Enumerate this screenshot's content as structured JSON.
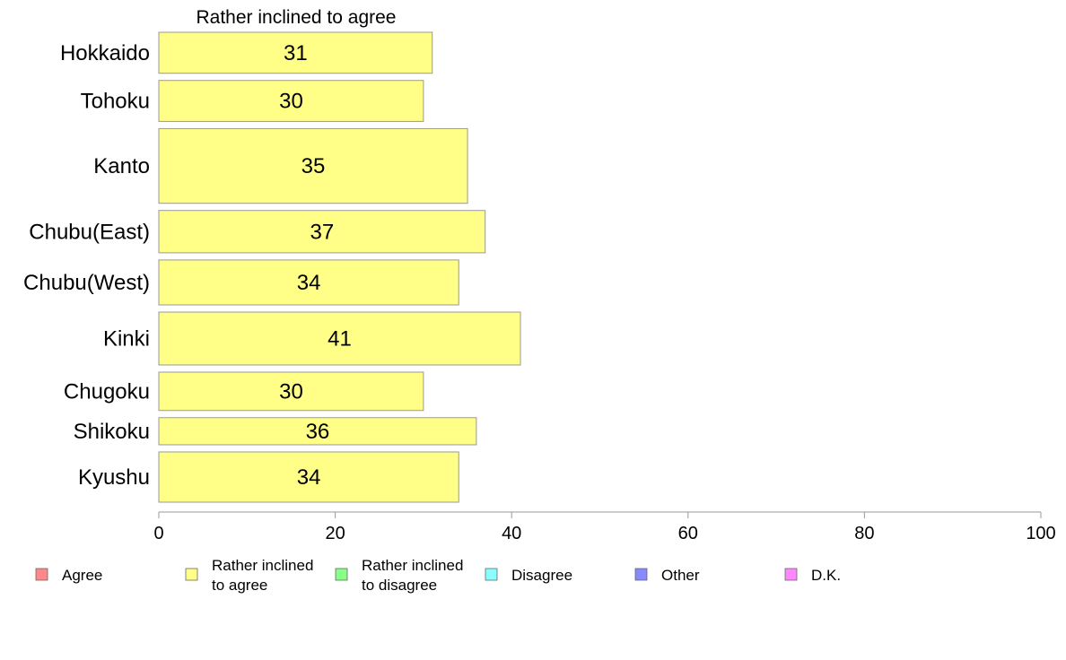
{
  "chart_data": {
    "type": "bar",
    "orientation": "horizontal",
    "series_title": "Rather inclined to agree",
    "categories": [
      "Hokkaido",
      "Tohoku",
      "Kanto",
      "Chubu(East)",
      "Chubu(West)",
      "Kinki",
      "Chugoku",
      "Shikoku",
      "Kyushu"
    ],
    "relative_bar_widths": [
      0.62,
      0.62,
      1.13,
      0.64,
      0.68,
      0.8,
      0.58,
      0.41,
      0.76
    ],
    "values": [
      31,
      30,
      35,
      37,
      34,
      41,
      30,
      36,
      34
    ],
    "data_labels": [
      "31",
      "30",
      "35",
      "37",
      "34",
      "41",
      "30",
      "36",
      "34"
    ],
    "bar_color": "#ffff88",
    "bar_stroke": "#999999",
    "xlim": [
      0,
      100
    ],
    "xticks": [
      "0",
      "20",
      "40",
      "60",
      "80",
      "100"
    ],
    "xlabel": "",
    "ylabel": "",
    "grid": false,
    "legend_position": "bottom",
    "legend": [
      {
        "lines": [
          "Agree"
        ],
        "color": "#ff8888"
      },
      {
        "lines": [
          "Rather inclined",
          "to agree"
        ],
        "color": "#ffff88"
      },
      {
        "lines": [
          "Rather inclined",
          "to disagree"
        ],
        "color": "#88ff88"
      },
      {
        "lines": [
          "Disagree"
        ],
        "color": "#88ffff"
      },
      {
        "lines": [
          "Other"
        ],
        "color": "#8888ff"
      },
      {
        "lines": [
          "D.K."
        ],
        "color": "#ff88ff"
      }
    ]
  }
}
